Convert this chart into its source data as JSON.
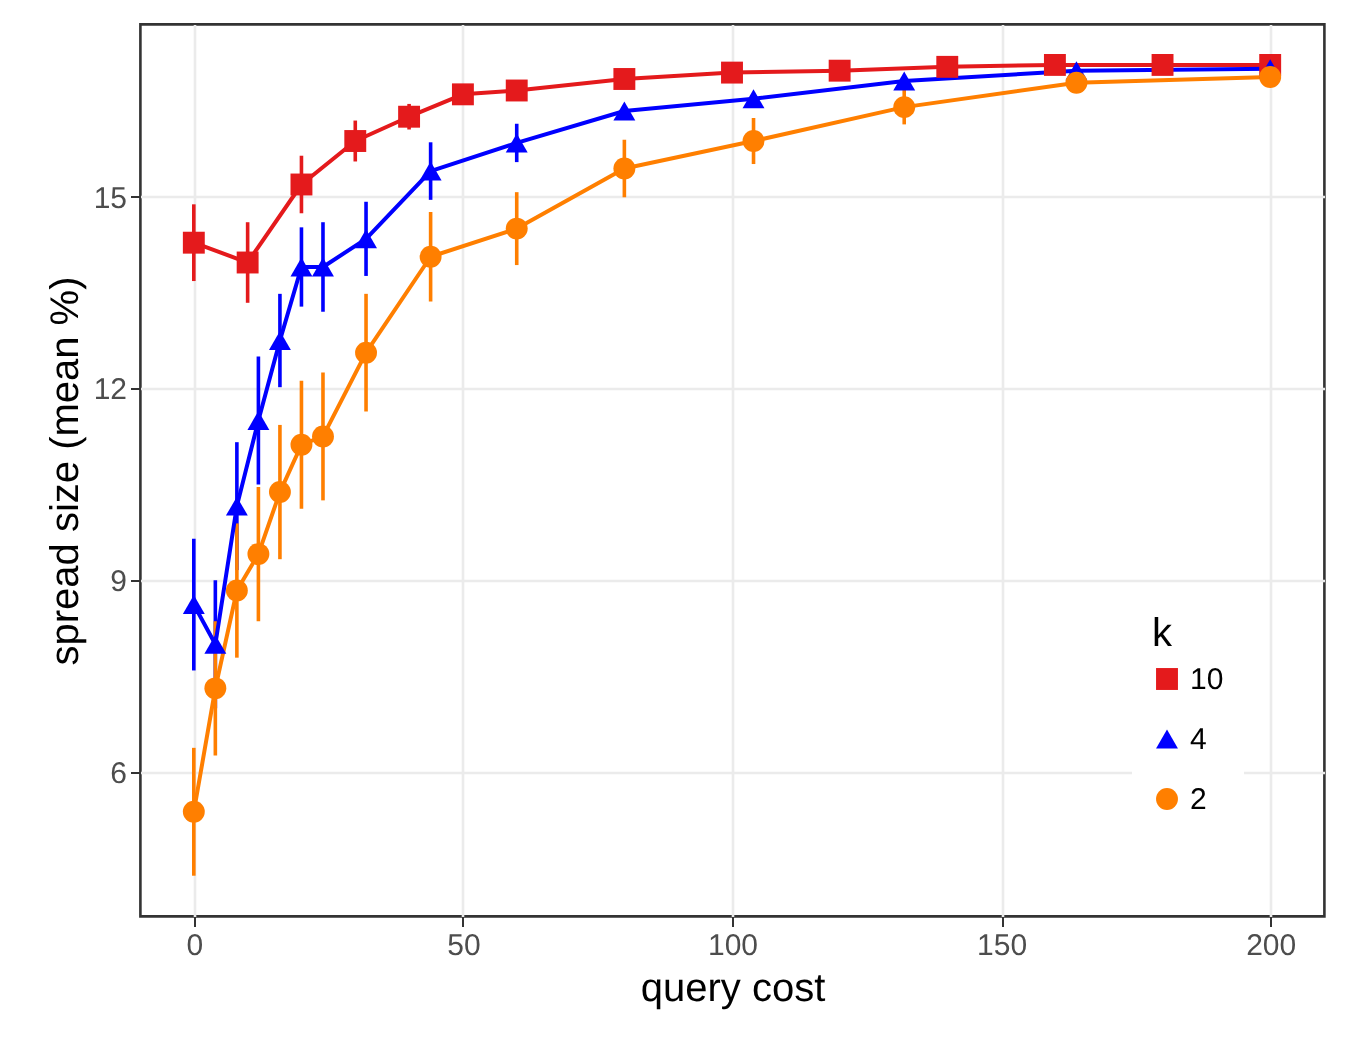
{
  "chart_data": {
    "type": "line",
    "xlabel": "query cost",
    "ylabel": "spread size (mean %)",
    "legend_title": "k",
    "legend": "bottom right",
    "grid": true,
    "line_style": "solid",
    "xlim": [
      -10,
      210
    ],
    "xticks": [
      0,
      50,
      100,
      150,
      200
    ],
    "ylim": [
      3.75,
      17.7
    ],
    "yticks": [
      6,
      9,
      12,
      15
    ],
    "series": [
      {
        "name": "10",
        "color": "#e41a1c",
        "marker": "square",
        "x": [
          0,
          10,
          20,
          30,
          40,
          50,
          60,
          80,
          100,
          120,
          140,
          160,
          180,
          200
        ],
        "values": [
          14.28,
          13.97,
          15.19,
          15.87,
          16.25,
          16.6,
          16.66,
          16.84,
          16.94,
          16.97,
          17.03,
          17.06,
          17.06,
          17.06
        ],
        "errors": [
          0.6,
          0.63,
          0.45,
          0.32,
          0.2,
          null,
          null,
          null,
          null,
          null,
          null,
          null,
          null,
          null
        ]
      },
      {
        "name": "4",
        "color": "#0000ff",
        "marker": "triangle",
        "x": [
          0,
          4,
          8,
          12,
          16,
          20,
          24,
          32,
          44,
          60,
          80,
          104,
          132,
          164,
          200
        ],
        "values": [
          8.62,
          8.0,
          10.16,
          11.5,
          12.75,
          13.9,
          13.9,
          14.34,
          15.4,
          15.84,
          16.34,
          16.53,
          16.81,
          16.97,
          17.0
        ],
        "errors": [
          1.03,
          1.0,
          1.0,
          1.0,
          0.73,
          0.62,
          0.7,
          0.58,
          0.45,
          0.3,
          null,
          null,
          null,
          null,
          null
        ]
      },
      {
        "name": "2",
        "color": "#ff7f00",
        "marker": "circle",
        "x": [
          0,
          4,
          8,
          12,
          16,
          20,
          24,
          32,
          44,
          60,
          80,
          104,
          132,
          164,
          200
        ],
        "values": [
          5.38,
          7.31,
          8.84,
          9.41,
          10.38,
          11.12,
          11.25,
          12.56,
          14.06,
          14.5,
          15.44,
          15.87,
          16.4,
          16.78,
          16.87
        ],
        "errors": [
          1.0,
          1.05,
          1.05,
          1.05,
          1.05,
          1.0,
          1.0,
          0.92,
          0.7,
          0.57,
          0.45,
          0.36,
          0.27,
          null,
          null
        ]
      }
    ]
  }
}
